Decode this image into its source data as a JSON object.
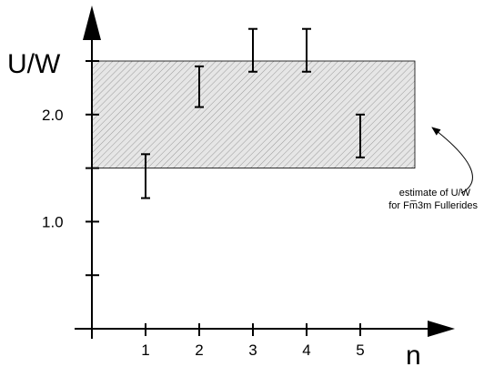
{
  "chart_data": {
    "type": "scatter",
    "title": "",
    "xlabel": "n",
    "ylabel": "U/W",
    "x_ticks": [
      "1",
      "2",
      "3",
      "4",
      "5"
    ],
    "y_tick_labels": [
      {
        "value": 1.0,
        "label": "1.0"
      },
      {
        "value": 2.0,
        "label": "2.0"
      }
    ],
    "y_minor_ticks": [
      0.5,
      1.5
    ],
    "ylim": [
      0,
      2.5
    ],
    "xlim": [
      0,
      6
    ],
    "series": [
      {
        "type": "errorbar",
        "points": [
          {
            "x": 1,
            "low": 1.22,
            "high": 1.63
          },
          {
            "x": 2,
            "low": 2.07,
            "high": 2.45
          },
          {
            "x": 3,
            "low": 2.4,
            "high": 2.8
          },
          {
            "x": 4,
            "low": 2.4,
            "high": 2.8
          },
          {
            "x": 5,
            "low": 1.6,
            "high": 2.0
          }
        ]
      }
    ],
    "band": {
      "low": 1.5,
      "high": 2.5,
      "pattern": "hatched",
      "annotation_lines": [
        "estimate of U/W",
        "for Fm̅3m Fullerides"
      ]
    },
    "grid": false,
    "legend": "none"
  }
}
